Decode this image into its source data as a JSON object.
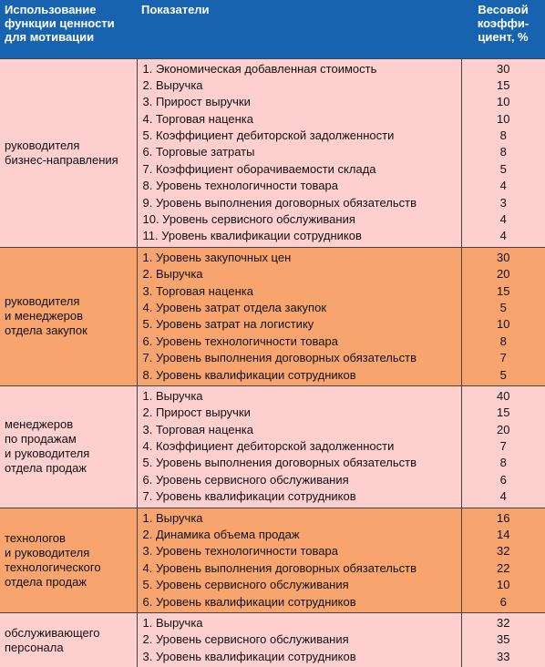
{
  "header": {
    "col1": [
      "Использование",
      "функции ценности",
      "для мотивации"
    ],
    "col2": [
      "Показатели"
    ],
    "col3": [
      "Весовой",
      "коэффи-",
      "циент, %"
    ]
  },
  "groups": [
    {
      "label": [
        "руководителя",
        "бизнес-направления"
      ],
      "rows": [
        [
          "1. Экономическая добавленная стоимость",
          30
        ],
        [
          "2. Выручка",
          15
        ],
        [
          "3. Прирост выручки",
          10
        ],
        [
          "4. Торговая наценка",
          10
        ],
        [
          "5. Коэффициент дебиторской задолженности",
          8
        ],
        [
          "6. Торговые затраты",
          8
        ],
        [
          "7. Коэффициент оборачиваемости склада",
          5
        ],
        [
          "8. Уровень технологичности товара",
          4
        ],
        [
          "9. Уровень выполнения договорных обязательств",
          3
        ],
        [
          "10. Уровень сервисного обслуживания",
          4
        ],
        [
          "11. Уровень квалификации сотрудников",
          4
        ]
      ]
    },
    {
      "label": [
        "руководителя",
        "и менеджеров",
        "отдела закупок"
      ],
      "rows": [
        [
          "1. Уровень закупочных цен",
          30
        ],
        [
          "2. Выручка",
          20
        ],
        [
          "3. Торговая наценка",
          15
        ],
        [
          "4. Уровень затрат отдела закупок",
          5
        ],
        [
          "5. Уровень затрат на логистику",
          10
        ],
        [
          "6. Уровень технологичности товара",
          8
        ],
        [
          "7. Уровень выполнения договорных обязательств",
          7
        ],
        [
          "8. Уровень квалификации сотрудников",
          5
        ]
      ]
    },
    {
      "label": [
        "менеджеров",
        "по продажам",
        "и руководителя",
        "отдела продаж"
      ],
      "rows": [
        [
          "1. Выручка",
          40
        ],
        [
          "2. Прирост выручки",
          15
        ],
        [
          "3. Торговая наценка",
          20
        ],
        [
          "4. Коэффициент дебиторской задолженности",
          7
        ],
        [
          "5. Уровень выполнения договорных обязательств",
          8
        ],
        [
          "6. Уровень сервисного обслуживания",
          6
        ],
        [
          "7. Уровень квалификации сотрудников",
          4
        ]
      ]
    },
    {
      "label": [
        "технологов",
        "и руководителя",
        "технологического",
        "отдела продаж"
      ],
      "rows": [
        [
          "1. Выручка",
          16
        ],
        [
          "2. Динамика объема продаж",
          14
        ],
        [
          "3. Уровень технологичности товара",
          32
        ],
        [
          "4. Уровень выполнения договорных обязательств",
          22
        ],
        [
          "5. Уровень сервисного обслуживания",
          10
        ],
        [
          "6. Уровень квалификации сотрудников",
          6
        ]
      ]
    },
    {
      "label": [
        "обслуживающего",
        "персонала"
      ],
      "rows": [
        [
          "1. Выручка",
          32
        ],
        [
          "2. Уровень сервисного обслуживания",
          35
        ],
        [
          "3. Уровень квалификации сотрудников",
          33
        ]
      ]
    }
  ]
}
